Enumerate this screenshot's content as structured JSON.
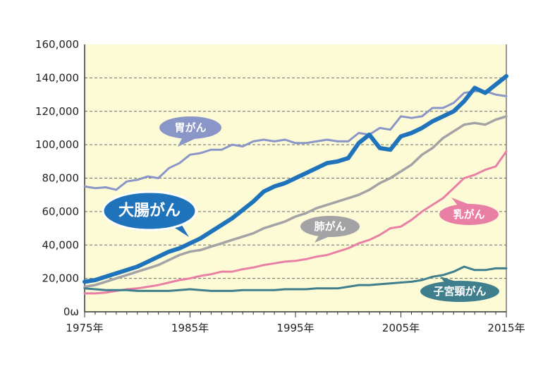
{
  "chart_data": {
    "type": "line",
    "xlabel": "",
    "ylabel": "",
    "xlim": [
      1975,
      2015
    ],
    "ylim": [
      0,
      160000
    ],
    "x_ticks": [
      "1975年",
      "1985年",
      "1995年",
      "2005年",
      "2015年"
    ],
    "y_ticks": [
      "160,000",
      "140,000",
      "120,000",
      "100,000",
      "80,000",
      "60,000",
      "40,000",
      "20,000",
      "0ω"
    ],
    "grid": true,
    "colors": {
      "plot_background": "#fdfbd6",
      "stomach": "#8b96c8",
      "colorectal": "#1f73bb",
      "lung": "#a3a3a6",
      "breast": "#ea7fa6",
      "cervical": "#3f7f8d"
    },
    "series": [
      {
        "name": "胃がん",
        "key": "stomach",
        "x": [
          1975,
          1976,
          1977,
          1978,
          1979,
          1980,
          1981,
          1982,
          1983,
          1984,
          1985,
          1986,
          1987,
          1988,
          1989,
          1990,
          1991,
          1992,
          1993,
          1994,
          1995,
          1996,
          1997,
          1998,
          1999,
          2000,
          2001,
          2002,
          2003,
          2004,
          2005,
          2006,
          2007,
          2008,
          2009,
          2010,
          2011,
          2012,
          2013,
          2014,
          2015
        ],
        "values": [
          75000,
          74000,
          74500,
          73000,
          78000,
          79000,
          81000,
          80000,
          86000,
          89000,
          94000,
          95000,
          97000,
          97000,
          100000,
          99000,
          102000,
          103000,
          102000,
          103000,
          101000,
          101000,
          102000,
          103000,
          102000,
          102000,
          107000,
          106000,
          110000,
          109000,
          117000,
          116000,
          117000,
          122000,
          122000,
          125000,
          131000,
          132000,
          132000,
          130000,
          129000
        ]
      },
      {
        "name": "大腸がん",
        "key": "colorectal",
        "x": [
          1975,
          1976,
          1977,
          1978,
          1979,
          1980,
          1981,
          1982,
          1983,
          1984,
          1985,
          1986,
          1987,
          1988,
          1989,
          1990,
          1991,
          1992,
          1993,
          1994,
          1995,
          1996,
          1997,
          1998,
          1999,
          2000,
          2001,
          2002,
          2003,
          2004,
          2005,
          2006,
          2007,
          2008,
          2009,
          2010,
          2011,
          2012,
          2013,
          2014,
          2015
        ],
        "values": [
          18000,
          19000,
          21000,
          23000,
          25000,
          27000,
          30000,
          33000,
          36000,
          38000,
          41000,
          44000,
          48000,
          52000,
          56000,
          61000,
          66000,
          72000,
          75000,
          77000,
          80000,
          83000,
          86000,
          89000,
          90000,
          92000,
          101000,
          106000,
          98000,
          97000,
          105000,
          107000,
          110000,
          114000,
          117000,
          120000,
          126000,
          134000,
          131000,
          136000,
          141000
        ]
      },
      {
        "name": "肺がん",
        "key": "lung",
        "x": [
          1975,
          1976,
          1977,
          1978,
          1979,
          1980,
          1981,
          1982,
          1983,
          1984,
          1985,
          1986,
          1987,
          1988,
          1989,
          1990,
          1991,
          1992,
          1993,
          1994,
          1995,
          1996,
          1997,
          1998,
          1999,
          2000,
          2001,
          2002,
          2003,
          2004,
          2005,
          2006,
          2007,
          2008,
          2009,
          2010,
          2011,
          2012,
          2013,
          2014,
          2015
        ],
        "values": [
          15000,
          16000,
          18000,
          20000,
          22000,
          24000,
          26000,
          28000,
          31000,
          34000,
          36000,
          37000,
          39000,
          41000,
          43000,
          45000,
          47000,
          50000,
          52000,
          54000,
          57000,
          59000,
          62000,
          64000,
          66000,
          68000,
          70000,
          73000,
          77000,
          80000,
          84000,
          88000,
          94000,
          98000,
          104000,
          108000,
          112000,
          113000,
          112000,
          115000,
          117000
        ]
      },
      {
        "name": "乳がん",
        "key": "breast",
        "x": [
          1975,
          1976,
          1977,
          1978,
          1979,
          1980,
          1981,
          1982,
          1983,
          1984,
          1985,
          1986,
          1987,
          1988,
          1989,
          1990,
          1991,
          1992,
          1993,
          1994,
          1995,
          1996,
          1997,
          1998,
          1999,
          2000,
          2001,
          2002,
          2003,
          2004,
          2005,
          2006,
          2007,
          2008,
          2009,
          2010,
          2011,
          2012,
          2013,
          2014,
          2015
        ],
        "values": [
          11000,
          11000,
          11500,
          12500,
          13500,
          14000,
          15000,
          16000,
          17500,
          19000,
          20000,
          21500,
          22500,
          24000,
          24000,
          25500,
          26500,
          28000,
          29000,
          30000,
          30500,
          31500,
          33000,
          34000,
          36000,
          38000,
          41000,
          43000,
          46000,
          50000,
          51000,
          55000,
          60000,
          64000,
          68000,
          74000,
          80000,
          82000,
          85000,
          87000,
          96000
        ]
      },
      {
        "name": "子宮頸がん",
        "key": "cervical",
        "x": [
          1975,
          1976,
          1977,
          1978,
          1979,
          1980,
          1981,
          1982,
          1983,
          1984,
          1985,
          1986,
          1987,
          1988,
          1989,
          1990,
          1991,
          1992,
          1993,
          1994,
          1995,
          1996,
          1997,
          1998,
          1999,
          2000,
          2001,
          2002,
          2003,
          2004,
          2005,
          2006,
          2007,
          2008,
          2009,
          2010,
          2011,
          2012,
          2013,
          2014,
          2015
        ],
        "values": [
          14000,
          13500,
          13000,
          13000,
          13000,
          12500,
          12500,
          12500,
          12500,
          13000,
          13500,
          13000,
          12500,
          12500,
          12500,
          13000,
          13000,
          13000,
          13000,
          13500,
          13500,
          13500,
          14000,
          14000,
          14000,
          15000,
          16000,
          16000,
          16500,
          17000,
          17500,
          18000,
          19000,
          21000,
          22000,
          24000,
          27000,
          25000,
          25000,
          26000,
          26000
        ]
      }
    ],
    "labels": {
      "stomach": "胃がん",
      "colorectal": "大腸がん",
      "lung": "肺がん",
      "breast": "乳がん",
      "cervical": "子宮頸がん"
    }
  }
}
